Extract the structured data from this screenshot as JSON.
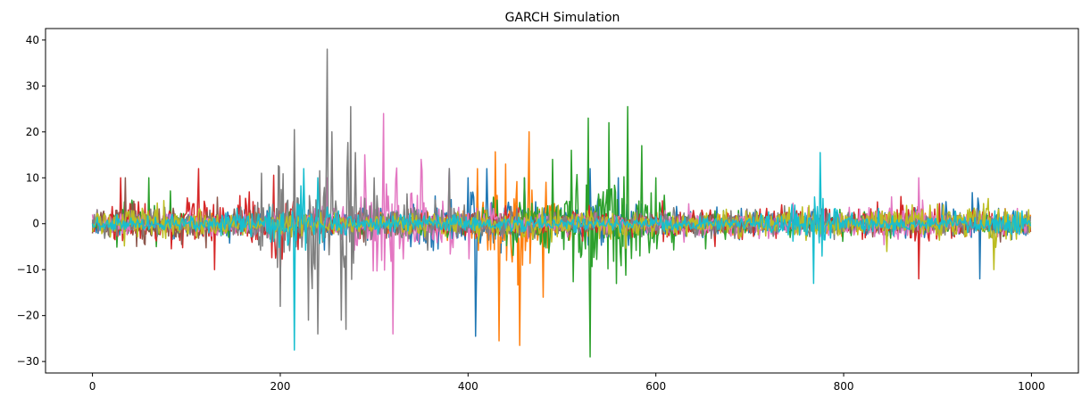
{
  "chart_data": {
    "type": "line",
    "title": "GARCH Simulation",
    "xlabel": "",
    "ylabel": "",
    "xlim": [
      -50,
      1050
    ],
    "ylim": [
      -32.5,
      42.5
    ],
    "xticks": [
      0,
      200,
      400,
      600,
      800,
      1000
    ],
    "yticks": [
      -30,
      -20,
      -10,
      0,
      10,
      20,
      30,
      40
    ],
    "grid": false,
    "legend": "none",
    "n_points": 1000,
    "series_colors": [
      "#1f77b4",
      "#ff7f0e",
      "#2ca02c",
      "#d62728",
      "#9467bd",
      "#8c564b",
      "#e377c2",
      "#7f7f7f",
      "#bcbd22",
      "#17becf"
    ],
    "series": [
      {
        "color": "#1f77b4",
        "peaks": [
          [
            0,
            2
          ],
          [
            120,
            4
          ],
          [
            200,
            6
          ],
          [
            260,
            8
          ],
          [
            330,
            7
          ],
          [
            380,
            12
          ],
          [
            400,
            10
          ],
          [
            408,
            -24.5
          ],
          [
            420,
            12
          ],
          [
            460,
            10
          ],
          [
            505,
            7
          ],
          [
            530,
            12
          ],
          [
            560,
            10
          ],
          [
            600,
            6
          ],
          [
            700,
            4
          ],
          [
            800,
            5
          ],
          [
            900,
            6
          ],
          [
            945,
            -12
          ],
          [
            1000,
            4
          ]
        ],
        "base_scale": 2.2
      },
      {
        "color": "#ff7f0e",
        "peaks": [
          [
            0,
            2
          ],
          [
            100,
            3
          ],
          [
            200,
            4
          ],
          [
            300,
            4
          ],
          [
            400,
            5
          ],
          [
            410,
            12
          ],
          [
            433,
            -25.5
          ],
          [
            440,
            13
          ],
          [
            455,
            -26.5
          ],
          [
            465,
            20
          ],
          [
            480,
            -16
          ],
          [
            500,
            8
          ],
          [
            520,
            6
          ],
          [
            600,
            4
          ],
          [
            700,
            3
          ],
          [
            800,
            4
          ],
          [
            900,
            3
          ],
          [
            1000,
            3
          ]
        ],
        "base_scale": 1.6
      },
      {
        "color": "#2ca02c",
        "peaks": [
          [
            0,
            4
          ],
          [
            60,
            10
          ],
          [
            100,
            5
          ],
          [
            200,
            4
          ],
          [
            300,
            4
          ],
          [
            400,
            6
          ],
          [
            460,
            10
          ],
          [
            490,
            14
          ],
          [
            510,
            16
          ],
          [
            528,
            23
          ],
          [
            530,
            -29
          ],
          [
            550,
            22
          ],
          [
            570,
            25.5
          ],
          [
            585,
            17
          ],
          [
            600,
            10
          ],
          [
            640,
            6
          ],
          [
            700,
            4
          ],
          [
            800,
            4
          ],
          [
            900,
            4
          ],
          [
            1000,
            3
          ]
        ],
        "base_scale": 2.0
      },
      {
        "color": "#d62728",
        "peaks": [
          [
            0,
            4
          ],
          [
            30,
            10
          ],
          [
            60,
            7
          ],
          [
            90,
            9
          ],
          [
            113,
            12
          ],
          [
            130,
            -10
          ],
          [
            200,
            -13
          ],
          [
            250,
            6
          ],
          [
            300,
            5
          ],
          [
            400,
            5
          ],
          [
            500,
            5
          ],
          [
            600,
            5
          ],
          [
            700,
            -8
          ],
          [
            800,
            5
          ],
          [
            880,
            -12
          ],
          [
            900,
            5
          ],
          [
            1000,
            6
          ]
        ],
        "base_scale": 2.4
      },
      {
        "color": "#9467bd",
        "peaks": [
          [
            0,
            2
          ],
          [
            200,
            3
          ],
          [
            400,
            3
          ],
          [
            600,
            3
          ],
          [
            800,
            3
          ],
          [
            1000,
            3
          ]
        ],
        "base_scale": 1.0
      },
      {
        "color": "#8c564b",
        "peaks": [
          [
            0,
            5
          ],
          [
            35,
            10
          ],
          [
            100,
            6
          ],
          [
            200,
            6
          ],
          [
            300,
            5
          ],
          [
            400,
            5
          ],
          [
            500,
            4
          ],
          [
            600,
            4
          ],
          [
            700,
            4
          ],
          [
            800,
            4
          ],
          [
            900,
            5
          ],
          [
            1000,
            4
          ]
        ],
        "base_scale": 1.8
      },
      {
        "color": "#e377c2",
        "peaks": [
          [
            0,
            3
          ],
          [
            100,
            4
          ],
          [
            200,
            5
          ],
          [
            250,
            10
          ],
          [
            290,
            15
          ],
          [
            310,
            24
          ],
          [
            320,
            -24
          ],
          [
            350,
            14
          ],
          [
            380,
            12
          ],
          [
            400,
            8
          ],
          [
            450,
            5
          ],
          [
            500,
            4
          ],
          [
            600,
            4
          ],
          [
            700,
            5
          ],
          [
            820,
            7
          ],
          [
            880,
            10
          ],
          [
            900,
            6
          ],
          [
            1000,
            5
          ]
        ],
        "base_scale": 2.2
      },
      {
        "color": "#7f7f7f",
        "peaks": [
          [
            0,
            3
          ],
          [
            100,
            5
          ],
          [
            150,
            7
          ],
          [
            180,
            11
          ],
          [
            200,
            -18
          ],
          [
            215,
            20.5
          ],
          [
            230,
            -21
          ],
          [
            240,
            -24
          ],
          [
            250,
            38
          ],
          [
            255,
            20
          ],
          [
            265,
            -21
          ],
          [
            270,
            -23
          ],
          [
            275,
            25.5
          ],
          [
            280,
            15.5
          ],
          [
            300,
            10
          ],
          [
            340,
            8
          ],
          [
            380,
            12
          ],
          [
            400,
            7
          ],
          [
            500,
            5
          ],
          [
            600,
            4
          ],
          [
            700,
            4
          ],
          [
            800,
            4
          ],
          [
            900,
            5
          ],
          [
            1000,
            4
          ]
        ],
        "base_scale": 2.4
      },
      {
        "color": "#bcbd22",
        "peaks": [
          [
            0,
            4
          ],
          [
            70,
            8
          ],
          [
            100,
            5
          ],
          [
            200,
            4
          ],
          [
            300,
            4
          ],
          [
            400,
            5
          ],
          [
            500,
            6
          ],
          [
            600,
            5
          ],
          [
            700,
            6
          ],
          [
            800,
            6
          ],
          [
            900,
            8
          ],
          [
            960,
            -10
          ],
          [
            990,
            8
          ],
          [
            1000,
            5
          ]
        ],
        "base_scale": 2.0
      },
      {
        "color": "#17becf",
        "peaks": [
          [
            0,
            2
          ],
          [
            100,
            2
          ],
          [
            200,
            8
          ],
          [
            215,
            -27.5
          ],
          [
            225,
            12
          ],
          [
            240,
            10
          ],
          [
            300,
            4
          ],
          [
            400,
            3
          ],
          [
            500,
            3
          ],
          [
            600,
            3
          ],
          [
            700,
            3
          ],
          [
            768,
            -13
          ],
          [
            775,
            15.5
          ],
          [
            790,
            6
          ],
          [
            850,
            3
          ],
          [
            950,
            4
          ],
          [
            995,
            7.5
          ],
          [
            1000,
            3
          ]
        ],
        "base_scale": 1.4
      }
    ]
  }
}
